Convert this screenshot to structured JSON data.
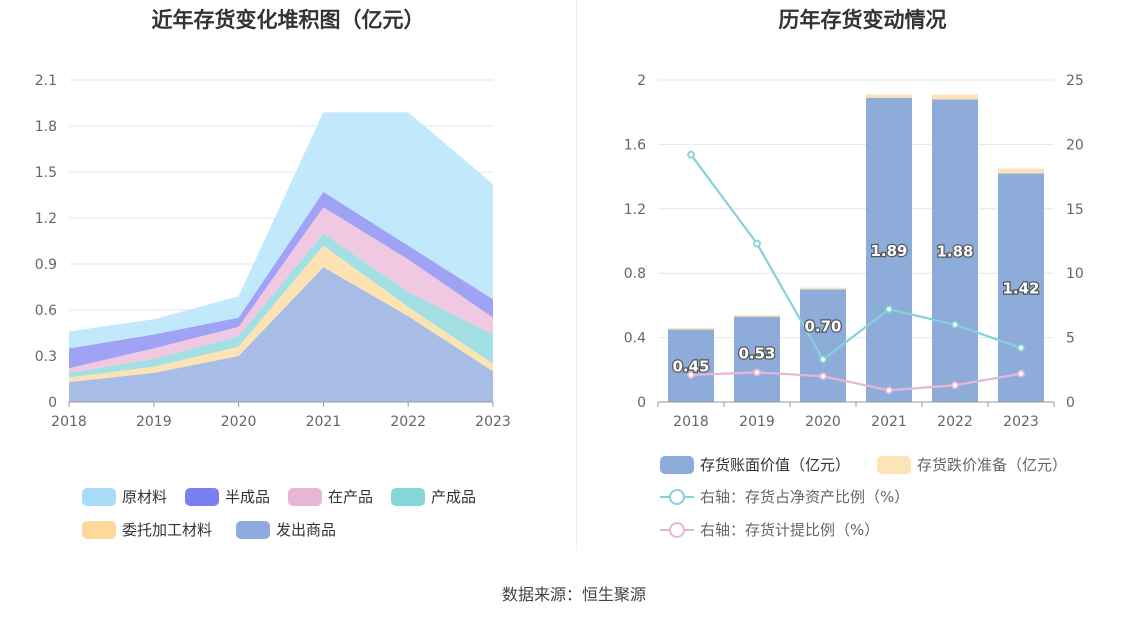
{
  "source_text": "数据来源：恒生聚源",
  "chart_data": [
    {
      "type": "area",
      "stacked": true,
      "title": "近年存货变化堆积图（亿元）",
      "x": [
        "2018",
        "2019",
        "2020",
        "2021",
        "2022",
        "2023"
      ],
      "yticks": [
        "0",
        "0.3",
        "0.6",
        "0.9",
        "1.2",
        "1.5",
        "1.8",
        "2.1"
      ],
      "ylim": [
        0,
        2.1
      ],
      "grid": true,
      "legend_position": "bottom",
      "series": [
        {
          "name": "发出商品",
          "color": "#a7bde6",
          "legend_color": "#8faadc",
          "values": [
            0.13,
            0.19,
            0.3,
            0.88,
            0.56,
            0.2
          ]
        },
        {
          "name": "委托加工材料",
          "color": "#fde3b3",
          "legend_color": "#fdd898",
          "values": [
            0.03,
            0.04,
            0.06,
            0.14,
            0.06,
            0.05
          ]
        },
        {
          "name": "产成品",
          "color": "#a3e0e3",
          "legend_color": "#85d6d9",
          "values": [
            0.03,
            0.05,
            0.07,
            0.08,
            0.1,
            0.19
          ]
        },
        {
          "name": "在产品",
          "color": "#f0c8e1",
          "legend_color": "#e8b5d5",
          "values": [
            0.03,
            0.07,
            0.06,
            0.17,
            0.21,
            0.11
          ]
        },
        {
          "name": "半成品",
          "color": "#a0a2f6",
          "legend_color": "#7b7ff2",
          "values": [
            0.13,
            0.09,
            0.06,
            0.1,
            0.09,
            0.12
          ]
        },
        {
          "name": "原材料",
          "color": "#c2e8fb",
          "legend_color": "#a8dcf8",
          "values": [
            0.11,
            0.1,
            0.14,
            0.52,
            0.87,
            0.75
          ]
        }
      ]
    },
    {
      "type": "bar",
      "stacked": true,
      "title": "历年存货变动情况",
      "categories": [
        "2018",
        "2019",
        "2020",
        "2021",
        "2022",
        "2023"
      ],
      "ylim_left": [
        0,
        2
      ],
      "yticks_left": [
        "0",
        "0.4",
        "0.8",
        "1.2",
        "1.6",
        "2"
      ],
      "ylim_right": [
        0,
        25
      ],
      "yticks_right": [
        "0",
        "5",
        "10",
        "15",
        "20",
        "25"
      ],
      "grid": true,
      "legend_position": "bottom",
      "bar_series": [
        {
          "name": "存货账面价值（亿元）",
          "color": "#8eacd9",
          "values": [
            0.45,
            0.53,
            0.7,
            1.89,
            1.88,
            1.42
          ],
          "labels": [
            "0.45",
            "0.53",
            "0.70",
            "1.89",
            "1.88",
            "1.42"
          ]
        },
        {
          "name": "存货跌价准备（亿元）",
          "color": "#fde3b8",
          "values": [
            0.01,
            0.01,
            0.01,
            0.02,
            0.03,
            0.03
          ]
        }
      ],
      "line_series": [
        {
          "name": "右轴：存货占净资产比例（%）",
          "color": "#84d3d8",
          "values": [
            19.2,
            12.3,
            3.3,
            7.2,
            6.0,
            4.2
          ]
        },
        {
          "name": "右轴：存货计提比例（%）",
          "color": "#e8b5d7",
          "values": [
            2.1,
            2.3,
            2.0,
            0.9,
            1.3,
            2.2
          ]
        }
      ]
    }
  ]
}
